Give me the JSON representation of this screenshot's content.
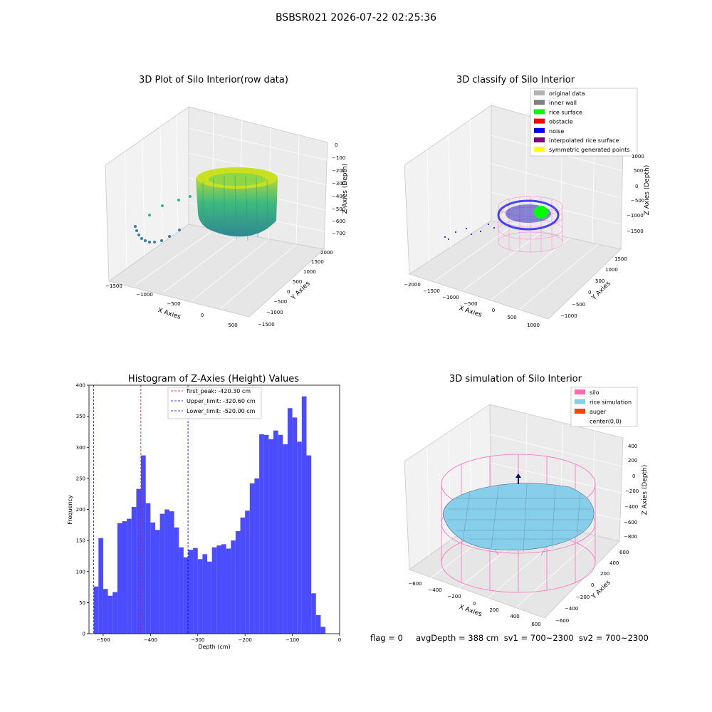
{
  "figure": {
    "suptitle": "BSBSR021 2026-07-22 02:25:36",
    "status_line": "flag = 0     avgDepth = 388 cm  sv1 = 700~2300  sv2 = 700~2300"
  },
  "colors": {
    "hist_bar": "#4b4bff",
    "first_peak_line": "#ff0000",
    "limit_line": "#0000cc",
    "silo_wire": "#ff69b4",
    "rice_simulation": "#87ceeb",
    "auger": "#ff4500",
    "noise": "#0000ff",
    "rice_surface": "#00ff00"
  },
  "chart_data": [
    {
      "type": "scatter",
      "title": "3D Plot of Silo Interior(row data)",
      "projection": "3d",
      "xlabel": "X Axies",
      "ylabel": "Y Axies",
      "zlabel": "Z Axies (Depth)",
      "x_ticks": [
        "−1500",
        "−1000",
        "−500",
        "0",
        "500"
      ],
      "y_ticks": [
        "−1500",
        "−1000",
        "−500",
        "0",
        "500",
        "1000",
        "1500",
        "2000"
      ],
      "z_ticks": [
        "0",
        "−100",
        "−200",
        "−300",
        "−400",
        "−500",
        "−600",
        "−700"
      ],
      "colormap": "viridis",
      "grid": true
    },
    {
      "type": "scatter",
      "title": "3D classify of Silo Interior",
      "projection": "3d",
      "xlabel": "X Axies",
      "ylabel": "Y Axies",
      "zlabel": "Z Axies (Depth)",
      "x_ticks": [
        "−2000",
        "−1500",
        "−1000",
        "−500",
        "0",
        "500",
        "1000"
      ],
      "y_ticks": [
        "−1000",
        "−500",
        "0",
        "500",
        "1000",
        "1500"
      ],
      "z_ticks": [
        "1000",
        "500",
        "0",
        "−500",
        "−1000",
        "−1500"
      ],
      "legend_position": "top-right",
      "legend": [
        {
          "label": "original data",
          "color": "#b3b3b3"
        },
        {
          "label": "inner wall",
          "color": "#808080"
        },
        {
          "label": "rice surface",
          "color": "#00ff00"
        },
        {
          "label": "obstacle",
          "color": "#ff0000"
        },
        {
          "label": "noise",
          "color": "#0000ff"
        },
        {
          "label": "interpolated rice surface",
          "color": "#800080"
        },
        {
          "label": "symmetric generated points",
          "color": "#ffff00"
        }
      ],
      "grid": true
    },
    {
      "type": "bar",
      "title": "Histogram of Z-Axies (Height) Values",
      "xlabel": "Depth (cm)",
      "ylabel": "Frequency",
      "xlim": [
        -530,
        0
      ],
      "ylim": [
        0,
        400
      ],
      "x_ticks": [
        -500,
        -400,
        -300,
        -200,
        -100,
        0
      ],
      "y_ticks": [
        0,
        50,
        100,
        150,
        200,
        250,
        300,
        350,
        400
      ],
      "bin_start": -520,
      "bin_width": 10,
      "values": [
        76,
        154,
        72,
        61,
        67,
        178,
        181,
        185,
        204,
        233,
        287,
        210,
        179,
        167,
        193,
        200,
        197,
        171,
        139,
        123,
        135,
        138,
        120,
        128,
        116,
        139,
        142,
        144,
        137,
        150,
        165,
        187,
        198,
        242,
        250,
        321,
        320,
        313,
        327,
        320,
        305,
        363,
        348,
        309,
        382,
        287,
        65,
        30,
        11
      ],
      "vlines": [
        {
          "label": "first_peak: -420.30 cm",
          "x": -420.3,
          "color": "#ff0000"
        },
        {
          "label": "Upper_limit: -320.60 cm",
          "x": -320.6,
          "color": "#0000cc"
        },
        {
          "label": "Lower_limit: -520.00 cm",
          "x": -520.0,
          "color": "#0000cc"
        }
      ],
      "legend_position": "top-center",
      "grid": false
    },
    {
      "type": "scatter",
      "title": "3D simulation of Silo Interior",
      "projection": "3d",
      "xlabel": "X Axies",
      "ylabel": "Y Axies",
      "zlabel": "Z Axies (Depth)",
      "x_ticks": [
        "−600",
        "−400",
        "−200",
        "0",
        "200",
        "400",
        "600"
      ],
      "y_ticks": [
        "−600",
        "−400",
        "−200",
        "0",
        "200",
        "400",
        "600"
      ],
      "z_ticks": [
        "400",
        "200",
        "0",
        "−200",
        "−400",
        "−600",
        "−800"
      ],
      "legend_position": "top-right",
      "legend": [
        {
          "label": "silo",
          "color": "#ff69b4"
        },
        {
          "label": "rice simulation",
          "color": "#87ceeb"
        },
        {
          "label": "auger",
          "color": "#ff4500"
        },
        {
          "label": "center(0,0)",
          "color": "#ffffff"
        }
      ],
      "grid": true
    }
  ]
}
